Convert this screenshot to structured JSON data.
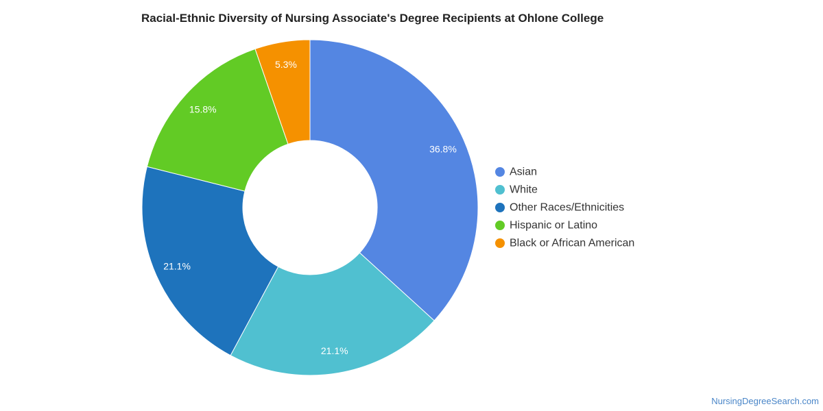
{
  "chart_data": {
    "type": "pie",
    "title": "Racial-Ethnic Diversity of Nursing Associate's Degree Recipients at Ohlone College",
    "variant": "donut",
    "legend_position": "right",
    "slices": [
      {
        "label": "Asian",
        "value": 36.8,
        "display": "36.8%",
        "color": "#5486e2"
      },
      {
        "label": "White",
        "value": 21.1,
        "display": "21.1%",
        "color": "#50c0d0"
      },
      {
        "label": "Other Races/Ethnicities",
        "value": 21.1,
        "display": "21.1%",
        "color": "#1e73bc"
      },
      {
        "label": "Hispanic or Latino",
        "value": 15.8,
        "display": "15.8%",
        "color": "#62cb25"
      },
      {
        "label": "Black or African American",
        "value": 5.3,
        "display": "5.3%",
        "color": "#f59100"
      }
    ]
  },
  "watermark": "NursingDegreeSearch.com"
}
